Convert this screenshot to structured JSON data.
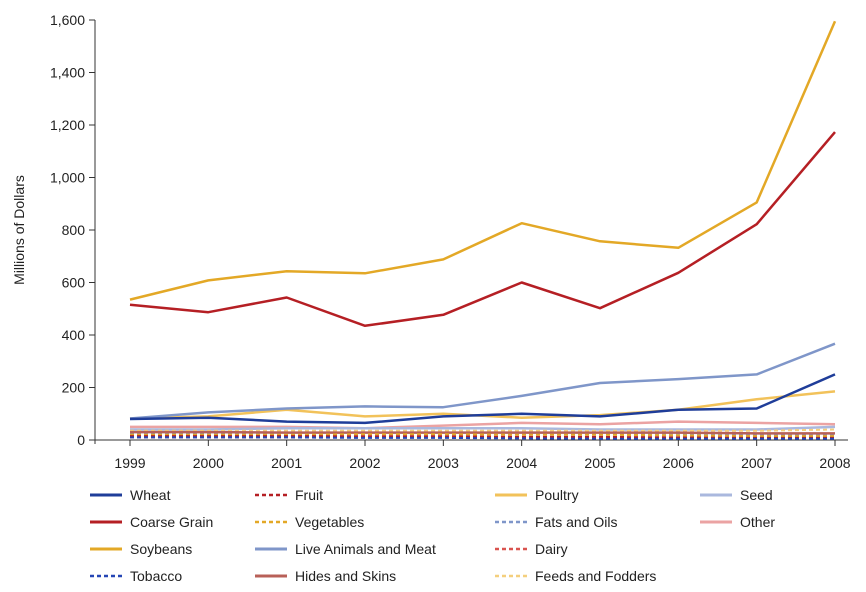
{
  "chart_data": {
    "type": "line",
    "title": "",
    "xlabel": "",
    "ylabel": "Millions of Dollars",
    "x": [
      1999,
      2000,
      2001,
      2002,
      2003,
      2004,
      2005,
      2006,
      2007,
      2008
    ],
    "ylim": [
      0,
      1600
    ],
    "yticks": [
      0,
      200,
      400,
      600,
      800,
      1000,
      1200,
      1400,
      1600
    ],
    "ytick_labels": [
      "0",
      "200",
      "400",
      "600",
      "800",
      "1,000",
      "1,200",
      "1,400",
      "1,600"
    ],
    "grid": false,
    "legend_position": "bottom",
    "series": [
      {
        "name": "Wheat",
        "color": "#1f3d99",
        "dash": "solid",
        "values": [
          80,
          85,
          70,
          65,
          90,
          100,
          90,
          115,
          120,
          250
        ]
      },
      {
        "name": "Coarse Grain",
        "color": "#b51f24",
        "dash": "solid",
        "values": [
          515,
          487,
          543,
          435,
          477,
          600,
          502,
          637,
          822,
          1173
        ]
      },
      {
        "name": "Soybeans",
        "color": "#e3a826",
        "dash": "solid",
        "values": [
          535,
          608,
          643,
          635,
          688,
          826,
          757,
          732,
          905,
          1595
        ]
      },
      {
        "name": "Tobacco",
        "color": "#2546b5",
        "dash": "dotted",
        "values": [
          10,
          10,
          10,
          8,
          8,
          6,
          5,
          5,
          5,
          5
        ]
      },
      {
        "name": "Fruit",
        "color": "#b51f24",
        "dash": "dotted",
        "values": [
          15,
          15,
          15,
          14,
          14,
          12,
          12,
          10,
          8,
          8
        ]
      },
      {
        "name": "Vegetables",
        "color": "#e3a826",
        "dash": "dotted",
        "values": [
          20,
          20,
          20,
          22,
          22,
          20,
          20,
          18,
          15,
          15
        ]
      },
      {
        "name": "Live Animals and Meat",
        "color": "#7f96c9",
        "dash": "solid",
        "values": [
          82,
          105,
          120,
          128,
          125,
          168,
          217,
          232,
          250,
          367
        ]
      },
      {
        "name": "Hides and Skins",
        "color": "#b86058",
        "dash": "solid",
        "values": [
          30,
          30,
          28,
          28,
          28,
          28,
          28,
          28,
          25,
          25
        ]
      },
      {
        "name": "Poultry",
        "color": "#f2c25a",
        "dash": "solid",
        "values": [
          82,
          90,
          115,
          90,
          100,
          85,
          95,
          115,
          155,
          185
        ]
      },
      {
        "name": "Fats and Oils",
        "color": "#7f96c9",
        "dash": "dotted",
        "values": [
          25,
          25,
          25,
          25,
          22,
          22,
          25,
          25,
          20,
          20
        ]
      },
      {
        "name": "Dairy",
        "color": "#d9534f",
        "dash": "dotted",
        "values": [
          10,
          10,
          10,
          10,
          10,
          8,
          8,
          8,
          8,
          8
        ]
      },
      {
        "name": "Feeds and Fodders",
        "color": "#f4cf7d",
        "dash": "dotted",
        "values": [
          35,
          35,
          35,
          35,
          35,
          35,
          35,
          35,
          35,
          40
        ]
      },
      {
        "name": "Seed",
        "color": "#aab8de",
        "dash": "solid",
        "values": [
          40,
          40,
          45,
          45,
          45,
          45,
          40,
          40,
          40,
          50
        ]
      },
      {
        "name": "Other",
        "color": "#eba3a3",
        "dash": "solid",
        "values": [
          50,
          50,
          50,
          45,
          55,
          65,
          60,
          70,
          65,
          60
        ]
      }
    ],
    "legend_columns": [
      [
        "Wheat",
        "Coarse Grain",
        "Soybeans",
        "Tobacco"
      ],
      [
        "Fruit",
        "Vegetables",
        "Live Animals and Meat",
        "Hides and Skins"
      ],
      [
        "Poultry",
        "Fats and Oils",
        "Dairy",
        "Feeds and Fodders"
      ],
      [
        "Seed",
        "Other"
      ]
    ]
  }
}
